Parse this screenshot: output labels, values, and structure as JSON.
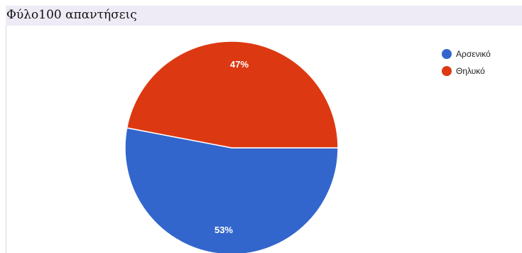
{
  "header": {
    "title": "Φύλο100 απαντήσεις"
  },
  "chart_data": {
    "type": "pie",
    "categories": [
      "Αρσενικό",
      "Θηλυκό"
    ],
    "values": [
      53,
      47
    ],
    "labels": [
      "53%",
      "47%"
    ],
    "colors": [
      "#3366cc",
      "#dc3912"
    ],
    "legend_position": "right"
  }
}
